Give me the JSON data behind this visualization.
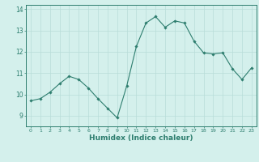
{
  "x": [
    0,
    1,
    2,
    3,
    4,
    5,
    6,
    7,
    8,
    9,
    10,
    11,
    12,
    13,
    14,
    15,
    16,
    17,
    18,
    19,
    20,
    21,
    22,
    23
  ],
  "y": [
    9.7,
    9.8,
    10.1,
    10.5,
    10.85,
    10.7,
    10.3,
    9.8,
    9.35,
    8.9,
    10.4,
    12.25,
    13.35,
    13.65,
    13.15,
    13.45,
    13.35,
    12.5,
    11.95,
    11.9,
    11.95,
    11.2,
    10.7,
    11.25
  ],
  "xlim": [
    -0.5,
    23.5
  ],
  "ylim": [
    8.5,
    14.2
  ],
  "yticks": [
    9,
    10,
    11,
    12,
    13,
    14
  ],
  "xticks": [
    0,
    1,
    2,
    3,
    4,
    5,
    6,
    7,
    8,
    9,
    10,
    11,
    12,
    13,
    14,
    15,
    16,
    17,
    18,
    19,
    20,
    21,
    22,
    23
  ],
  "xlabel": "Humidex (Indice chaleur)",
  "line_color": "#2d7d6e",
  "marker_color": "#2d7d6e",
  "bg_color": "#d4f0ec",
  "grid_color": "#b8ddd8",
  "axis_color": "#2d7d6e",
  "tick_color": "#2d7d6e",
  "xlabel_color": "#2d7d6e"
}
